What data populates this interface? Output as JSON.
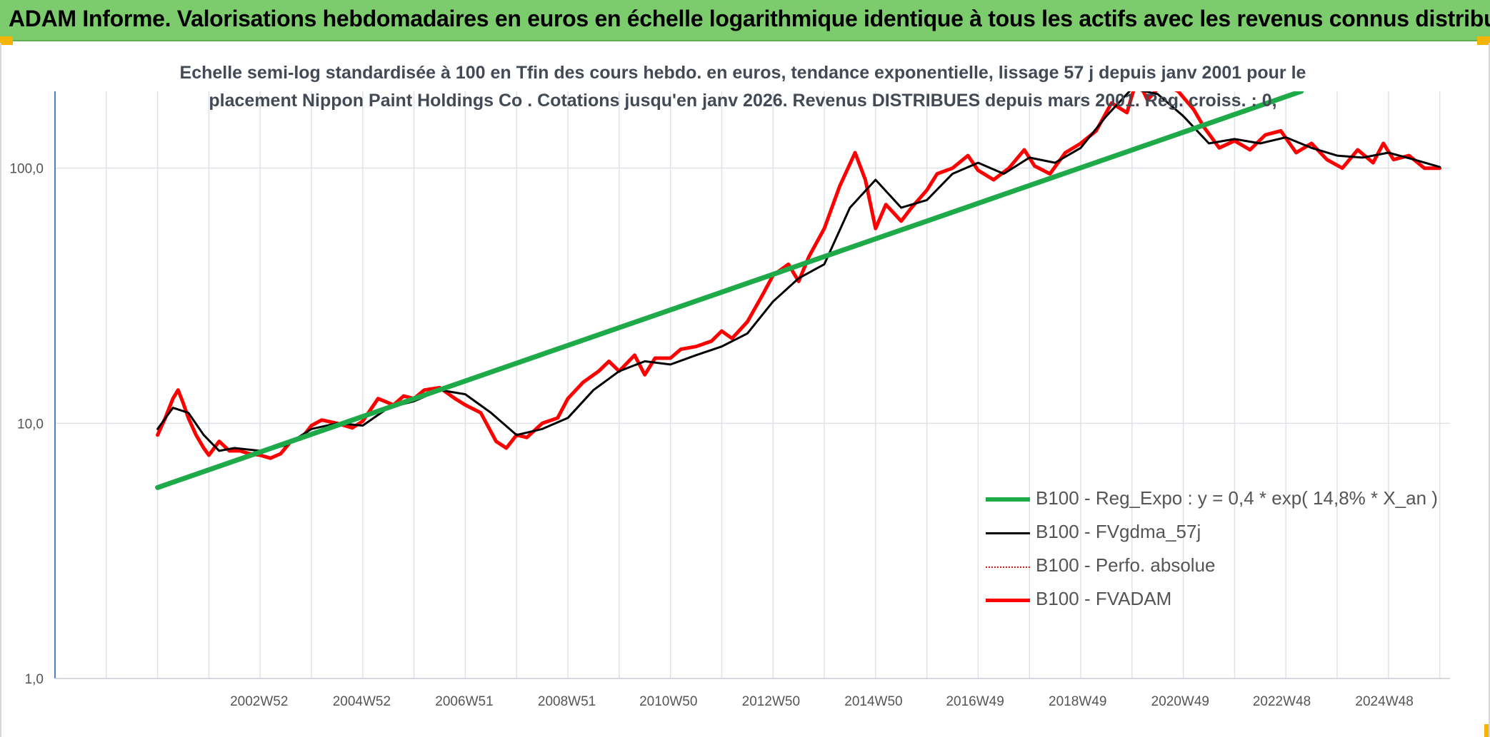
{
  "header": {
    "title": "ADAM Informe. Valorisations hebdomadaires en euros en échelle logarithmique identique à tous les actifs avec les revenus connus distribués"
  },
  "chart_subtitle": {
    "line1": "Echelle semi-log standardisée à 100 en Tfin des cours hebdo. en euros, tendance exponentielle, lissage 57 j depuis janv 2001 pour le",
    "line2": "placement Nippon Paint Holdings Co . Cotations jusqu'en janv 2026. Revenus DISTRIBUES depuis mars 2001. Reg. croiss. : 0,"
  },
  "colors": {
    "banner": "#7ccc6e",
    "reg_expo": "#1faa4a",
    "fvgdma": "#000000",
    "perfo": "#e01010",
    "fvadam": "#ff0000",
    "grid": "#dfe3e8",
    "axis": "#4f81bd"
  },
  "chart_data": {
    "type": "line",
    "yscale": "log",
    "ylim": [
      1,
      200
    ],
    "xlim": [
      1999.0,
      2026.2
    ],
    "y_ticks": [
      {
        "value": 1,
        "label": "1,0"
      },
      {
        "value": 10,
        "label": "10,0"
      },
      {
        "value": 100,
        "label": "100,0"
      }
    ],
    "x_ticks": [
      {
        "value": 2002.98,
        "label": "2002W52"
      },
      {
        "value": 2004.98,
        "label": "2004W52"
      },
      {
        "value": 2006.98,
        "label": "2006W51"
      },
      {
        "value": 2008.98,
        "label": "2008W51"
      },
      {
        "value": 2010.96,
        "label": "2010W50"
      },
      {
        "value": 2012.96,
        "label": "2012W50"
      },
      {
        "value": 2014.96,
        "label": "2014W50"
      },
      {
        "value": 2016.94,
        "label": "2016W49"
      },
      {
        "value": 2018.94,
        "label": "2018W49"
      },
      {
        "value": 2020.94,
        "label": "2020W49"
      },
      {
        "value": 2022.92,
        "label": "2022W48"
      },
      {
        "value": 2024.92,
        "label": "2024W48"
      }
    ],
    "series": [
      {
        "name": "B100 - Reg_Expo : y = 0,4 * exp( 14,8% *  X_an )",
        "style": "thick-green",
        "x": [
          2001.0,
          2023.3
        ],
        "y": [
          5.6,
          200
        ]
      },
      {
        "name": "B100 - FVgdma_57j",
        "style": "black",
        "x": [
          2001.0,
          2001.3,
          2001.6,
          2001.9,
          2002.2,
          2002.5,
          2003.0,
          2003.5,
          2004.0,
          2004.5,
          2005.0,
          2005.5,
          2006.0,
          2006.5,
          2007.0,
          2007.5,
          2008.0,
          2008.5,
          2009.0,
          2009.5,
          2010.0,
          2010.5,
          2011.0,
          2011.5,
          2012.0,
          2012.5,
          2013.0,
          2013.5,
          2014.0,
          2014.5,
          2015.0,
          2015.5,
          2016.0,
          2016.5,
          2017.0,
          2017.5,
          2018.0,
          2018.5,
          2019.0,
          2019.5,
          2020.0,
          2020.5,
          2021.0,
          2021.5,
          2022.0,
          2022.5,
          2023.0,
          2023.5,
          2024.0,
          2024.5,
          2025.0,
          2025.5,
          2026.0
        ],
        "y": [
          9.5,
          11.5,
          11.0,
          9.0,
          7.8,
          8.0,
          7.8,
          8.2,
          9.5,
          10.0,
          9.8,
          11.5,
          12.2,
          13.5,
          13.0,
          11.0,
          9.0,
          9.5,
          10.5,
          13.5,
          16.0,
          17.5,
          17.0,
          18.5,
          20.0,
          22.5,
          30.0,
          37.0,
          42.0,
          70.0,
          90.0,
          70.0,
          75.0,
          95.0,
          105.0,
          95.0,
          110.0,
          105.0,
          120.0,
          160.0,
          205.0,
          195.0,
          160.0,
          125.0,
          130.0,
          125.0,
          132.0,
          120.0,
          112.0,
          110.0,
          115.0,
          108.0,
          101.0
        ]
      },
      {
        "name": "B100 - Perfo. absolue",
        "style": "dotted-red",
        "x": [],
        "y": []
      },
      {
        "name": "B100 - FVADAM",
        "style": "thick-red",
        "x": [
          2001.0,
          2001.15,
          2001.3,
          2001.4,
          2001.5,
          2001.6,
          2001.75,
          2001.9,
          2002.0,
          2002.2,
          2002.4,
          2002.6,
          2002.8,
          2003.0,
          2003.2,
          2003.4,
          2003.6,
          2003.8,
          2004.0,
          2004.2,
          2004.5,
          2004.8,
          2005.0,
          2005.3,
          2005.6,
          2005.8,
          2006.0,
          2006.2,
          2006.5,
          2006.8,
          2007.0,
          2007.3,
          2007.6,
          2007.8,
          2008.0,
          2008.2,
          2008.5,
          2008.8,
          2009.0,
          2009.3,
          2009.6,
          2009.8,
          2010.0,
          2010.3,
          2010.5,
          2010.7,
          2011.0,
          2011.2,
          2011.5,
          2011.8,
          2012.0,
          2012.2,
          2012.5,
          2012.8,
          2013.0,
          2013.3,
          2013.5,
          2013.7,
          2014.0,
          2014.3,
          2014.6,
          2014.8,
          2015.0,
          2015.2,
          2015.5,
          2015.7,
          2016.0,
          2016.2,
          2016.5,
          2016.8,
          2017.0,
          2017.3,
          2017.6,
          2017.9,
          2018.1,
          2018.4,
          2018.7,
          2019.0,
          2019.3,
          2019.6,
          2019.9,
          2020.1,
          2020.3,
          2020.6,
          2020.9,
          2021.2,
          2021.4,
          2021.7,
          2022.0,
          2022.3,
          2022.6,
          2022.9,
          2023.2,
          2023.5,
          2023.8,
          2024.1,
          2024.4,
          2024.7,
          2024.9,
          2025.1,
          2025.4,
          2025.7,
          2026.0
        ],
        "y": [
          9.0,
          10.5,
          12.5,
          13.5,
          12.0,
          10.5,
          9.0,
          8.0,
          7.5,
          8.5,
          7.8,
          7.8,
          7.6,
          7.5,
          7.3,
          7.6,
          8.5,
          8.7,
          9.8,
          10.3,
          10.0,
          9.6,
          10.2,
          12.5,
          11.8,
          12.8,
          12.5,
          13.5,
          13.8,
          12.5,
          11.8,
          11.0,
          8.5,
          8.0,
          9.0,
          8.8,
          10.0,
          10.5,
          12.5,
          14.5,
          16.0,
          17.5,
          16.0,
          18.5,
          15.5,
          18.0,
          18.0,
          19.5,
          20.0,
          21.0,
          23.0,
          21.5,
          25.0,
          32.0,
          38.0,
          42.0,
          36.0,
          45.0,
          58.0,
          85.0,
          115.0,
          90.0,
          58.0,
          72.0,
          62.0,
          70.0,
          82.0,
          95.0,
          100.0,
          112.0,
          98.0,
          90.0,
          100.0,
          118.0,
          102.0,
          95.0,
          115.0,
          125.0,
          140.0,
          180.0,
          165.0,
          225.0,
          185.0,
          215.0,
          200.0,
          170.0,
          145.0,
          120.0,
          128.0,
          118.0,
          135.0,
          140.0,
          115.0,
          125.0,
          108.0,
          100.0,
          118.0,
          105.0,
          125.0,
          108.0,
          112.0,
          100.0,
          100.0
        ]
      }
    ]
  }
}
